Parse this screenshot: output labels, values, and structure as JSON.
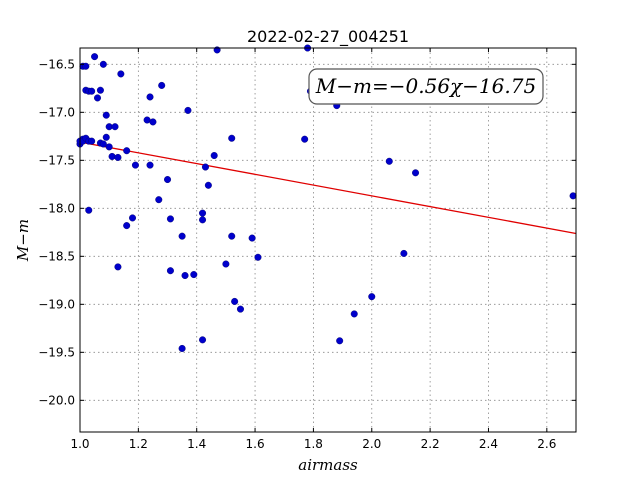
{
  "chart_data": {
    "type": "scatter",
    "title": "2022-02-27_004251",
    "xlabel": "airmass",
    "ylabel": "M−m",
    "xlim": [
      1.0,
      2.7
    ],
    "ylim": [
      -20.33,
      -16.33
    ],
    "xticks": [
      1.0,
      1.2,
      1.4,
      1.6,
      1.8,
      2.0,
      2.2,
      2.4,
      2.6
    ],
    "xtick_labels": [
      "1.0",
      "1.2",
      "1.4",
      "1.6",
      "1.8",
      "2.0",
      "2.2",
      "2.4",
      "2.6"
    ],
    "yticks": [
      -16.5,
      -17.0,
      -17.5,
      -18.0,
      -18.5,
      -19.0,
      -19.5,
      -20.0
    ],
    "ytick_labels": [
      "−16.5",
      "−17.0",
      "−17.5",
      "−18.0",
      "−18.5",
      "−19.0",
      "−19.5",
      "−20.0"
    ],
    "grid": true,
    "annotation": "M−m=−0.56χ−16.75",
    "fit": {
      "slope": -0.56,
      "intercept": -16.75,
      "color": "#e00000"
    },
    "marker_color": "#0000cc",
    "points": [
      [
        1.0,
        -17.33
      ],
      [
        1.0,
        -17.3
      ],
      [
        1.01,
        -17.28
      ],
      [
        1.01,
        -17.3
      ],
      [
        1.02,
        -17.27
      ],
      [
        1.01,
        -16.52
      ],
      [
        1.02,
        -16.52
      ],
      [
        1.02,
        -16.77
      ],
      [
        1.03,
        -16.78
      ],
      [
        1.04,
        -16.78
      ],
      [
        1.03,
        -17.3
      ],
      [
        1.04,
        -17.3
      ],
      [
        1.05,
        -16.42
      ],
      [
        1.06,
        -16.85
      ],
      [
        1.07,
        -16.77
      ],
      [
        1.08,
        -16.5
      ],
      [
        1.07,
        -17.32
      ],
      [
        1.08,
        -17.33
      ],
      [
        1.09,
        -17.03
      ],
      [
        1.09,
        -17.26
      ],
      [
        1.1,
        -17.36
      ],
      [
        1.1,
        -17.15
      ],
      [
        1.11,
        -17.46
      ],
      [
        1.12,
        -17.15
      ],
      [
        1.13,
        -17.47
      ],
      [
        1.03,
        -18.02
      ],
      [
        1.13,
        -18.61
      ],
      [
        1.14,
        -16.6
      ],
      [
        1.16,
        -17.4
      ],
      [
        1.16,
        -18.18
      ],
      [
        1.18,
        -18.1
      ],
      [
        1.19,
        -17.55
      ],
      [
        1.23,
        -17.08
      ],
      [
        1.24,
        -16.84
      ],
      [
        1.24,
        -17.55
      ],
      [
        1.25,
        -17.1
      ],
      [
        1.27,
        -17.91
      ],
      [
        1.28,
        -16.72
      ],
      [
        1.3,
        -17.7
      ],
      [
        1.31,
        -18.11
      ],
      [
        1.31,
        -18.65
      ],
      [
        1.35,
        -18.29
      ],
      [
        1.35,
        -19.46
      ],
      [
        1.36,
        -18.7
      ],
      [
        1.37,
        -16.98
      ],
      [
        1.39,
        -18.69
      ],
      [
        1.42,
        -18.12
      ],
      [
        1.42,
        -18.05
      ],
      [
        1.42,
        -19.37
      ],
      [
        1.43,
        -17.57
      ],
      [
        1.44,
        -17.76
      ],
      [
        1.46,
        -17.45
      ],
      [
        1.47,
        -16.35
      ],
      [
        1.5,
        -18.58
      ],
      [
        1.52,
        -18.29
      ],
      [
        1.52,
        -17.27
      ],
      [
        1.53,
        -18.97
      ],
      [
        1.55,
        -19.05
      ],
      [
        1.59,
        -18.31
      ],
      [
        1.61,
        -18.51
      ],
      [
        1.77,
        -17.28
      ],
      [
        1.78,
        -16.33
      ],
      [
        1.79,
        -16.78
      ],
      [
        1.88,
        -16.93
      ],
      [
        1.89,
        -19.38
      ],
      [
        1.94,
        -19.1
      ],
      [
        2.0,
        -18.92
      ],
      [
        2.06,
        -17.51
      ],
      [
        2.11,
        -18.47
      ],
      [
        2.15,
        -17.63
      ],
      [
        2.69,
        -17.87
      ]
    ]
  }
}
